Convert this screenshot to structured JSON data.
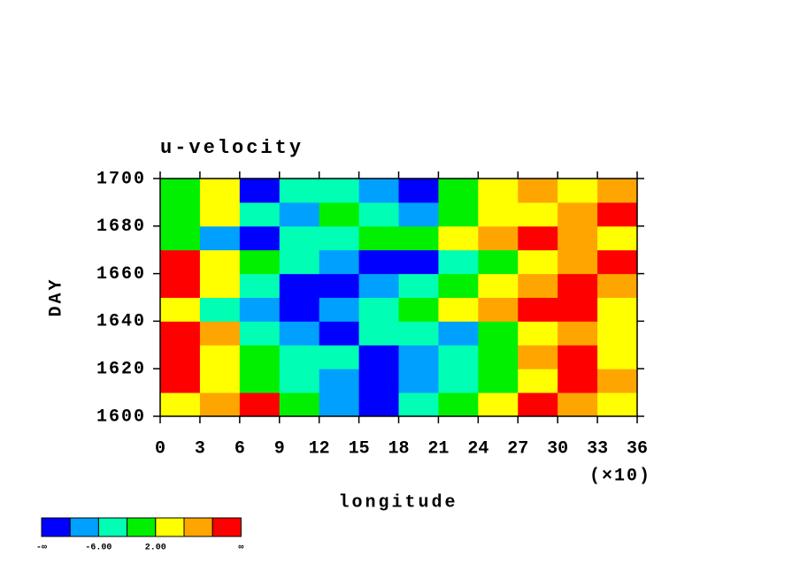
{
  "chart_data": {
    "type": "heatmap",
    "title": "u-velocity",
    "xlabel": "longitude",
    "ylabel": "DAY",
    "x_multiplier": "(×10)",
    "x": [
      1.5,
      4.5,
      7.5,
      10.5,
      13.5,
      16.5,
      19.5,
      22.5,
      25.5,
      28.5,
      31.5,
      34.5
    ],
    "y": [
      1605,
      1615,
      1625,
      1635,
      1645,
      1655,
      1665,
      1675,
      1685,
      1695
    ],
    "z": [
      [
        4,
        8,
        12,
        0,
        -8,
        -12,
        -4,
        0,
        4,
        12,
        8,
        4
      ],
      [
        12,
        4,
        0,
        -4,
        -8,
        -12,
        -8,
        -4,
        0,
        4,
        12,
        8
      ],
      [
        12,
        4,
        0,
        -4,
        -4,
        -12,
        -8,
        -4,
        0,
        8,
        12,
        4
      ],
      [
        12,
        8,
        -4,
        -8,
        -12,
        -4,
        -4,
        -8,
        0,
        4,
        8,
        4
      ],
      [
        4,
        -4,
        -8,
        -12,
        -8,
        -4,
        0,
        4,
        8,
        12,
        12,
        4
      ],
      [
        12,
        4,
        -4,
        -12,
        -12,
        -8,
        -4,
        0,
        4,
        8,
        12,
        8
      ],
      [
        12,
        4,
        0,
        -4,
        -8,
        -12,
        -12,
        -4,
        0,
        4,
        8,
        12
      ],
      [
        0,
        -8,
        -12,
        -4,
        -4,
        0,
        0,
        4,
        8,
        12,
        8,
        4
      ],
      [
        0,
        4,
        -4,
        -8,
        0,
        -4,
        -8,
        0,
        4,
        4,
        8,
        12
      ],
      [
        0,
        4,
        -12,
        -4,
        -4,
        -8,
        -12,
        0,
        4,
        8,
        4,
        8
      ]
    ],
    "levels": [
      -10,
      -6,
      -2,
      2,
      6,
      10
    ],
    "colors": [
      "#0000ff",
      "#00a0ff",
      "#00ffb4",
      "#00f000",
      "#ffff00",
      "#ffa500",
      "#ff0000"
    ],
    "colorbar_ticks": [
      {
        "value": -6,
        "label": "-6.00"
      },
      {
        "value": 2,
        "label": "2.00"
      }
    ],
    "colorbar_min_label": "-∞",
    "colorbar_max_label": "∞",
    "xlim": [
      0,
      36
    ],
    "xticks": [
      0,
      3,
      6,
      9,
      12,
      15,
      18,
      21,
      24,
      27,
      30,
      33,
      36
    ],
    "ylim": [
      1600,
      1700
    ],
    "yticks": [
      1600,
      1620,
      1640,
      1660,
      1680,
      1700
    ]
  }
}
